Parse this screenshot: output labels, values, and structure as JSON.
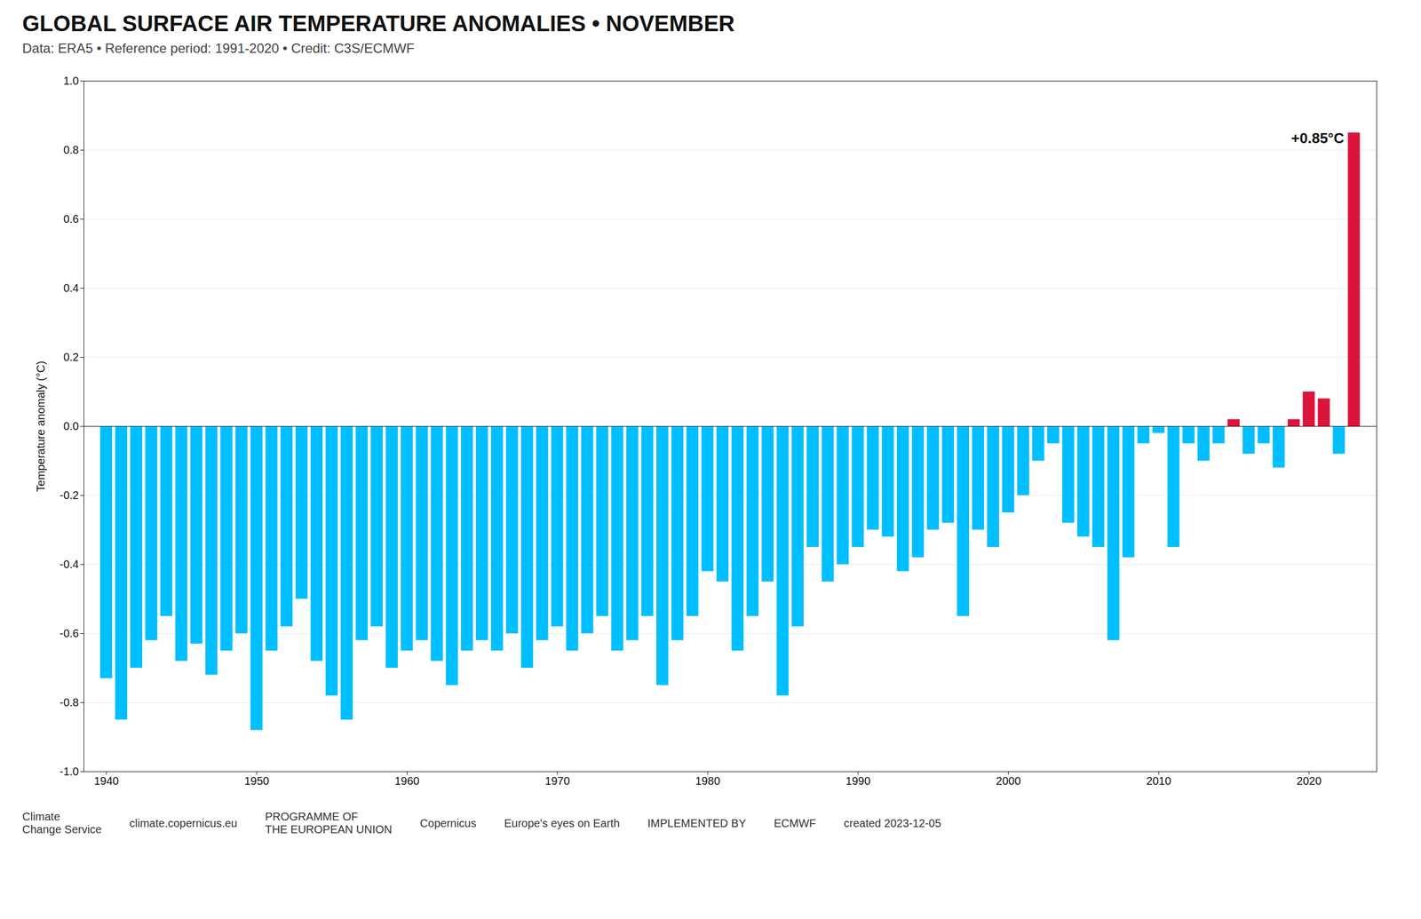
{
  "chart_data": {
    "type": "bar",
    "title": "GLOBAL SURFACE AIR TEMPERATURE ANOMALIES • NOVEMBER",
    "subtitle": "Data: ERA5 • Reference period: 1991-2020 • Credit: C3S/ECMWF",
    "ylabel": "Temperature anomaly (°C)",
    "x": [
      1940,
      1941,
      1942,
      1943,
      1944,
      1945,
      1946,
      1947,
      1948,
      1949,
      1950,
      1951,
      1952,
      1953,
      1954,
      1955,
      1956,
      1957,
      1958,
      1959,
      1960,
      1961,
      1962,
      1963,
      1964,
      1965,
      1966,
      1967,
      1968,
      1969,
      1970,
      1971,
      1972,
      1973,
      1974,
      1975,
      1976,
      1977,
      1978,
      1979,
      1980,
      1981,
      1982,
      1983,
      1984,
      1985,
      1986,
      1987,
      1988,
      1989,
      1990,
      1991,
      1992,
      1993,
      1994,
      1995,
      1996,
      1997,
      1998,
      1999,
      2000,
      2001,
      2002,
      2003,
      2004,
      2005,
      2006,
      2007,
      2008,
      2009,
      2010,
      2011,
      2012,
      2013,
      2014,
      2015,
      2016,
      2017,
      2018,
      2019,
      2020,
      2021,
      2022,
      2023
    ],
    "values": [
      -0.73,
      -0.85,
      -0.7,
      -0.62,
      -0.55,
      -0.68,
      -0.63,
      -0.72,
      -0.65,
      -0.6,
      -0.88,
      -0.65,
      -0.58,
      -0.5,
      -0.68,
      -0.78,
      -0.85,
      -0.62,
      -0.58,
      -0.7,
      -0.65,
      -0.62,
      -0.68,
      -0.75,
      -0.65,
      -0.62,
      -0.65,
      -0.6,
      -0.7,
      -0.62,
      -0.58,
      -0.65,
      -0.6,
      -0.55,
      -0.65,
      -0.62,
      -0.55,
      -0.75,
      -0.62,
      -0.55,
      -0.42,
      -0.45,
      -0.65,
      -0.55,
      -0.45,
      -0.78,
      -0.58,
      -0.35,
      -0.45,
      -0.4,
      -0.35,
      -0.3,
      -0.32,
      -0.42,
      -0.38,
      -0.3,
      -0.28,
      -0.55,
      -0.3,
      -0.35,
      -0.25,
      -0.2,
      -0.1,
      -0.05,
      -0.28,
      -0.32,
      -0.35,
      -0.62,
      -0.38,
      -0.05,
      -0.02,
      -0.35,
      -0.05,
      -0.1,
      -0.05,
      0.02,
      -0.08,
      -0.05,
      -0.12,
      0.02,
      0.1,
      0.08,
      -0.08,
      0.85
    ],
    "colors": [
      "#00BFFF",
      "#00BFFF",
      "#00BFFF",
      "#00BFFF",
      "#00BFFF",
      "#00BFFF",
      "#00BFFF",
      "#00BFFF",
      "#00BFFF",
      "#00BFFF",
      "#00BFFF",
      "#00BFFF",
      "#00BFFF",
      "#00BFFF",
      "#00BFFF",
      "#00BFFF",
      "#00BFFF",
      "#00BFFF",
      "#00BFFF",
      "#00BFFF",
      "#00BFFF",
      "#00BFFF",
      "#00BFFF",
      "#00BFFF",
      "#00BFFF",
      "#00BFFF",
      "#00BFFF",
      "#00BFFF",
      "#00BFFF",
      "#00BFFF",
      "#00BFFF",
      "#00BFFF",
      "#00BFFF",
      "#00BFFF",
      "#00BFFF",
      "#00BFFF",
      "#00BFFF",
      "#00BFFF",
      "#00BFFF",
      "#00BFFF",
      "#00BFFF",
      "#00BFFF",
      "#00BFFF",
      "#00BFFF",
      "#00BFFF",
      "#00BFFF",
      "#00BFFF",
      "#00BFFF",
      "#00BFFF",
      "#00BFFF",
      "#00BFFF",
      "#00BFFF",
      "#00BFFF",
      "#00BFFF",
      "#00BFFF",
      "#00BFFF",
      "#00BFFF",
      "#00BFFF",
      "#00BFFF",
      "#00BFFF",
      "#00BFFF",
      "#00BFFF",
      "#00BFFF",
      "#00BFFF",
      "#00BFFF",
      "#00BFFF",
      "#00BFFF",
      "#00BFFF",
      "#00BFFF",
      "#00BFFF",
      "#00BFFF",
      "#00BFFF",
      "#00BFFF",
      "#00BFFF",
      "#00BFFF",
      "#DC143C",
      "#00BFFF",
      "#00BFFF",
      "#00BFFF",
      "#DC143C",
      "#DC143C",
      "#DC143C",
      "#00BFFF",
      "#DC143C"
    ],
    "xlim": [
      1938.5,
      2024.5
    ],
    "xticks": [
      1940,
      1950,
      1960,
      1970,
      1980,
      1990,
      2000,
      2010,
      2020
    ],
    "ylim": [
      -1.0,
      1.0
    ],
    "yticks": [
      {
        "value": -1.0,
        "label": "-1.0"
      },
      -0.8,
      -0.6,
      -0.4,
      -0.2,
      {
        "value": 0.0,
        "label": "0.0"
      },
      0.2,
      0.4,
      0.6,
      0.8,
      {
        "value": 1.0,
        "label": "1.0"
      }
    ],
    "grid": true,
    "annotations": [
      {
        "text": "+0.85°C",
        "x": 2023,
        "y": 0.85
      },
      {
        "text": "Climate\nChange Service"
      },
      {
        "text": "climate.copernicus.eu"
      },
      {
        "text": "PROGRAMME OF\nTHE EUROPEAN UNION"
      },
      {
        "text": "Copernicus"
      },
      {
        "text": "Europe's eyes on Earth"
      },
      {
        "text": "IMPLEMENTED BY"
      },
      {
        "text": "ECMWF"
      },
      {
        "text": "created 2023-12-05"
      }
    ]
  }
}
